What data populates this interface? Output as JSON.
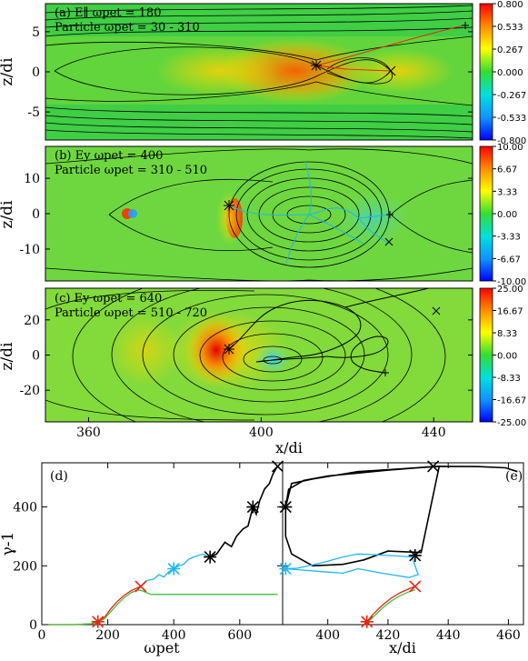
{
  "figure": {
    "panels": [
      {
        "id": "a",
        "title": "(a) E∥ ωpet = 180",
        "subtitle": "Particle ωpet = 30 - 310",
        "ylabel": "z/di",
        "yticks": [
          -5,
          0,
          5
        ],
        "ylim": [
          -8.5,
          8.5
        ],
        "xlim": [
          350,
          449
        ],
        "colorbar": {
          "ticks": [
            "0.800",
            "0.533",
            "0.267",
            "0.000",
            "-0.267",
            "-0.533",
            "-0.800"
          ]
        }
      },
      {
        "id": "b",
        "title": "(b) Ey ωpet = 400",
        "subtitle": "Particle ωpet = 310 - 510",
        "ylabel": "z/di",
        "yticks": [
          -10,
          0,
          10
        ],
        "ylim": [
          -19,
          19
        ],
        "xlim": [
          350,
          449
        ],
        "colorbar": {
          "ticks": [
            "10.00",
            "6.67",
            "3.33",
            "0.00",
            "-3.33",
            "-6.67",
            "-10.00"
          ]
        }
      },
      {
        "id": "c",
        "title": "(c) Ey ωpet = 640",
        "subtitle": "Particle ωpet = 510 - 720",
        "ylabel": "z/di",
        "yticks": [
          -20,
          0,
          20
        ],
        "ylim": [
          -38,
          38
        ],
        "xlim": [
          350,
          449
        ],
        "xticks": [
          360,
          400,
          440
        ],
        "xlabel": "x/di",
        "colorbar": {
          "ticks": [
            "25.00",
            "16.67",
            "8.33",
            "0.00",
            "-8.33",
            "-16.67",
            "-25.00"
          ]
        }
      }
    ],
    "bottom_left": {
      "label": "(d)",
      "xlabel": "ωpet",
      "ylabel": "γ-1",
      "xticks": [
        0,
        200,
        400,
        600
      ],
      "yticks": [
        0,
        200,
        400
      ],
      "xlim": [
        0,
        730
      ],
      "ylim": [
        0,
        550
      ]
    },
    "bottom_right": {
      "label": "(e)",
      "xlabel": "x/di",
      "xticks": [
        400,
        420,
        440,
        460
      ],
      "xlim": [
        385,
        465
      ],
      "ylim": [
        0,
        550
      ]
    },
    "colors": {
      "black": "#000000",
      "cyan": "#1ab8f0",
      "red": "#e8240f",
      "green": "#3cc43c"
    }
  },
  "chart_data": [
    {
      "type": "line",
      "panel": "d",
      "series": [
        {
          "color": "black",
          "x": [
            510,
            530,
            555,
            575,
            590,
            610,
            625,
            640,
            650,
            660,
            675,
            690,
            700,
            710,
            715
          ],
          "y": [
            230,
            240,
            280,
            265,
            300,
            325,
            335,
            400,
            375,
            420,
            460,
            480,
            510,
            530,
            538
          ]
        },
        {
          "color": "cyan",
          "x": [
            300,
            320,
            340,
            355,
            370,
            385,
            400,
            415,
            430,
            445,
            460,
            475,
            490,
            500,
            510
          ],
          "y": [
            130,
            150,
            155,
            170,
            162,
            180,
            190,
            200,
            205,
            222,
            230,
            235,
            240,
            232,
            230
          ]
        },
        {
          "color": "red",
          "x": [
            20,
            100,
            150,
            170,
            190,
            210,
            230,
            250,
            270,
            290,
            300
          ],
          "y": [
            0,
            0,
            3,
            10,
            25,
            55,
            80,
            100,
            115,
            125,
            130
          ]
        },
        {
          "color": "green",
          "x": [
            20,
            100,
            150,
            170,
            190,
            210,
            230,
            250,
            270,
            290,
            305,
            330,
            400,
            500,
            600,
            700,
            715
          ],
          "y": [
            0,
            0,
            3,
            8,
            20,
            45,
            70,
            92,
            108,
            118,
            115,
            103,
            103,
            103,
            103,
            103,
            103
          ]
        }
      ],
      "markers": [
        {
          "x": 170,
          "y": 10,
          "color": "red",
          "shape": "star"
        },
        {
          "x": 300,
          "y": 130,
          "color": "red",
          "shape": "cross"
        },
        {
          "x": 400,
          "y": 190,
          "color": "cyan",
          "shape": "star"
        },
        {
          "x": 510,
          "y": 230,
          "color": "black",
          "shape": "star"
        },
        {
          "x": 640,
          "y": 400,
          "color": "black",
          "shape": "star"
        },
        {
          "x": 715,
          "y": 538,
          "color": "black",
          "shape": "cross"
        }
      ]
    },
    {
      "type": "line",
      "panel": "e",
      "series": [
        {
          "color": "black",
          "x": [
            386,
            387,
            392,
            400,
            410,
            415,
            420,
            430,
            437,
            431,
            420,
            412,
            405,
            395,
            388,
            386,
            386,
            388,
            395,
            410,
            425,
            436,
            450,
            459,
            463
          ],
          "y": [
            400,
            460,
            490,
            505,
            515,
            520,
            525,
            533,
            538,
            245,
            250,
            220,
            205,
            200,
            240,
            300,
            400,
            480,
            495,
            520,
            530,
            538,
            537,
            533,
            520
          ]
        },
        {
          "color": "cyan",
          "x": [
            386,
            390,
            398,
            405,
            410,
            415,
            420,
            425,
            428,
            430,
            427,
            418,
            410,
            405,
            398,
            392,
            386
          ],
          "y": [
            190,
            192,
            210,
            230,
            240,
            238,
            235,
            232,
            230,
            170,
            160,
            175,
            190,
            175,
            180,
            185,
            190
          ]
        },
        {
          "color": "red",
          "x": [
            412,
            413,
            415,
            418,
            421,
            424,
            427,
            429
          ],
          "y": [
            0,
            10,
            35,
            65,
            90,
            108,
            122,
            130
          ]
        },
        {
          "color": "green",
          "x": [
            412,
            413,
            415,
            418,
            421,
            424,
            427,
            429
          ],
          "y": [
            0,
            6,
            25,
            55,
            80,
            98,
            112,
            118
          ]
        }
      ],
      "markers": [
        {
          "x": 413,
          "y": 10,
          "color": "red",
          "shape": "star"
        },
        {
          "x": 429,
          "y": 130,
          "color": "red",
          "shape": "cross"
        },
        {
          "x": 386,
          "y": 190,
          "color": "cyan",
          "shape": "star"
        },
        {
          "x": 429,
          "y": 235,
          "color": "black",
          "shape": "star"
        },
        {
          "x": 386,
          "y": 400,
          "color": "black",
          "shape": "star"
        },
        {
          "x": 435,
          "y": 538,
          "color": "black",
          "shape": "cross"
        }
      ]
    }
  ]
}
